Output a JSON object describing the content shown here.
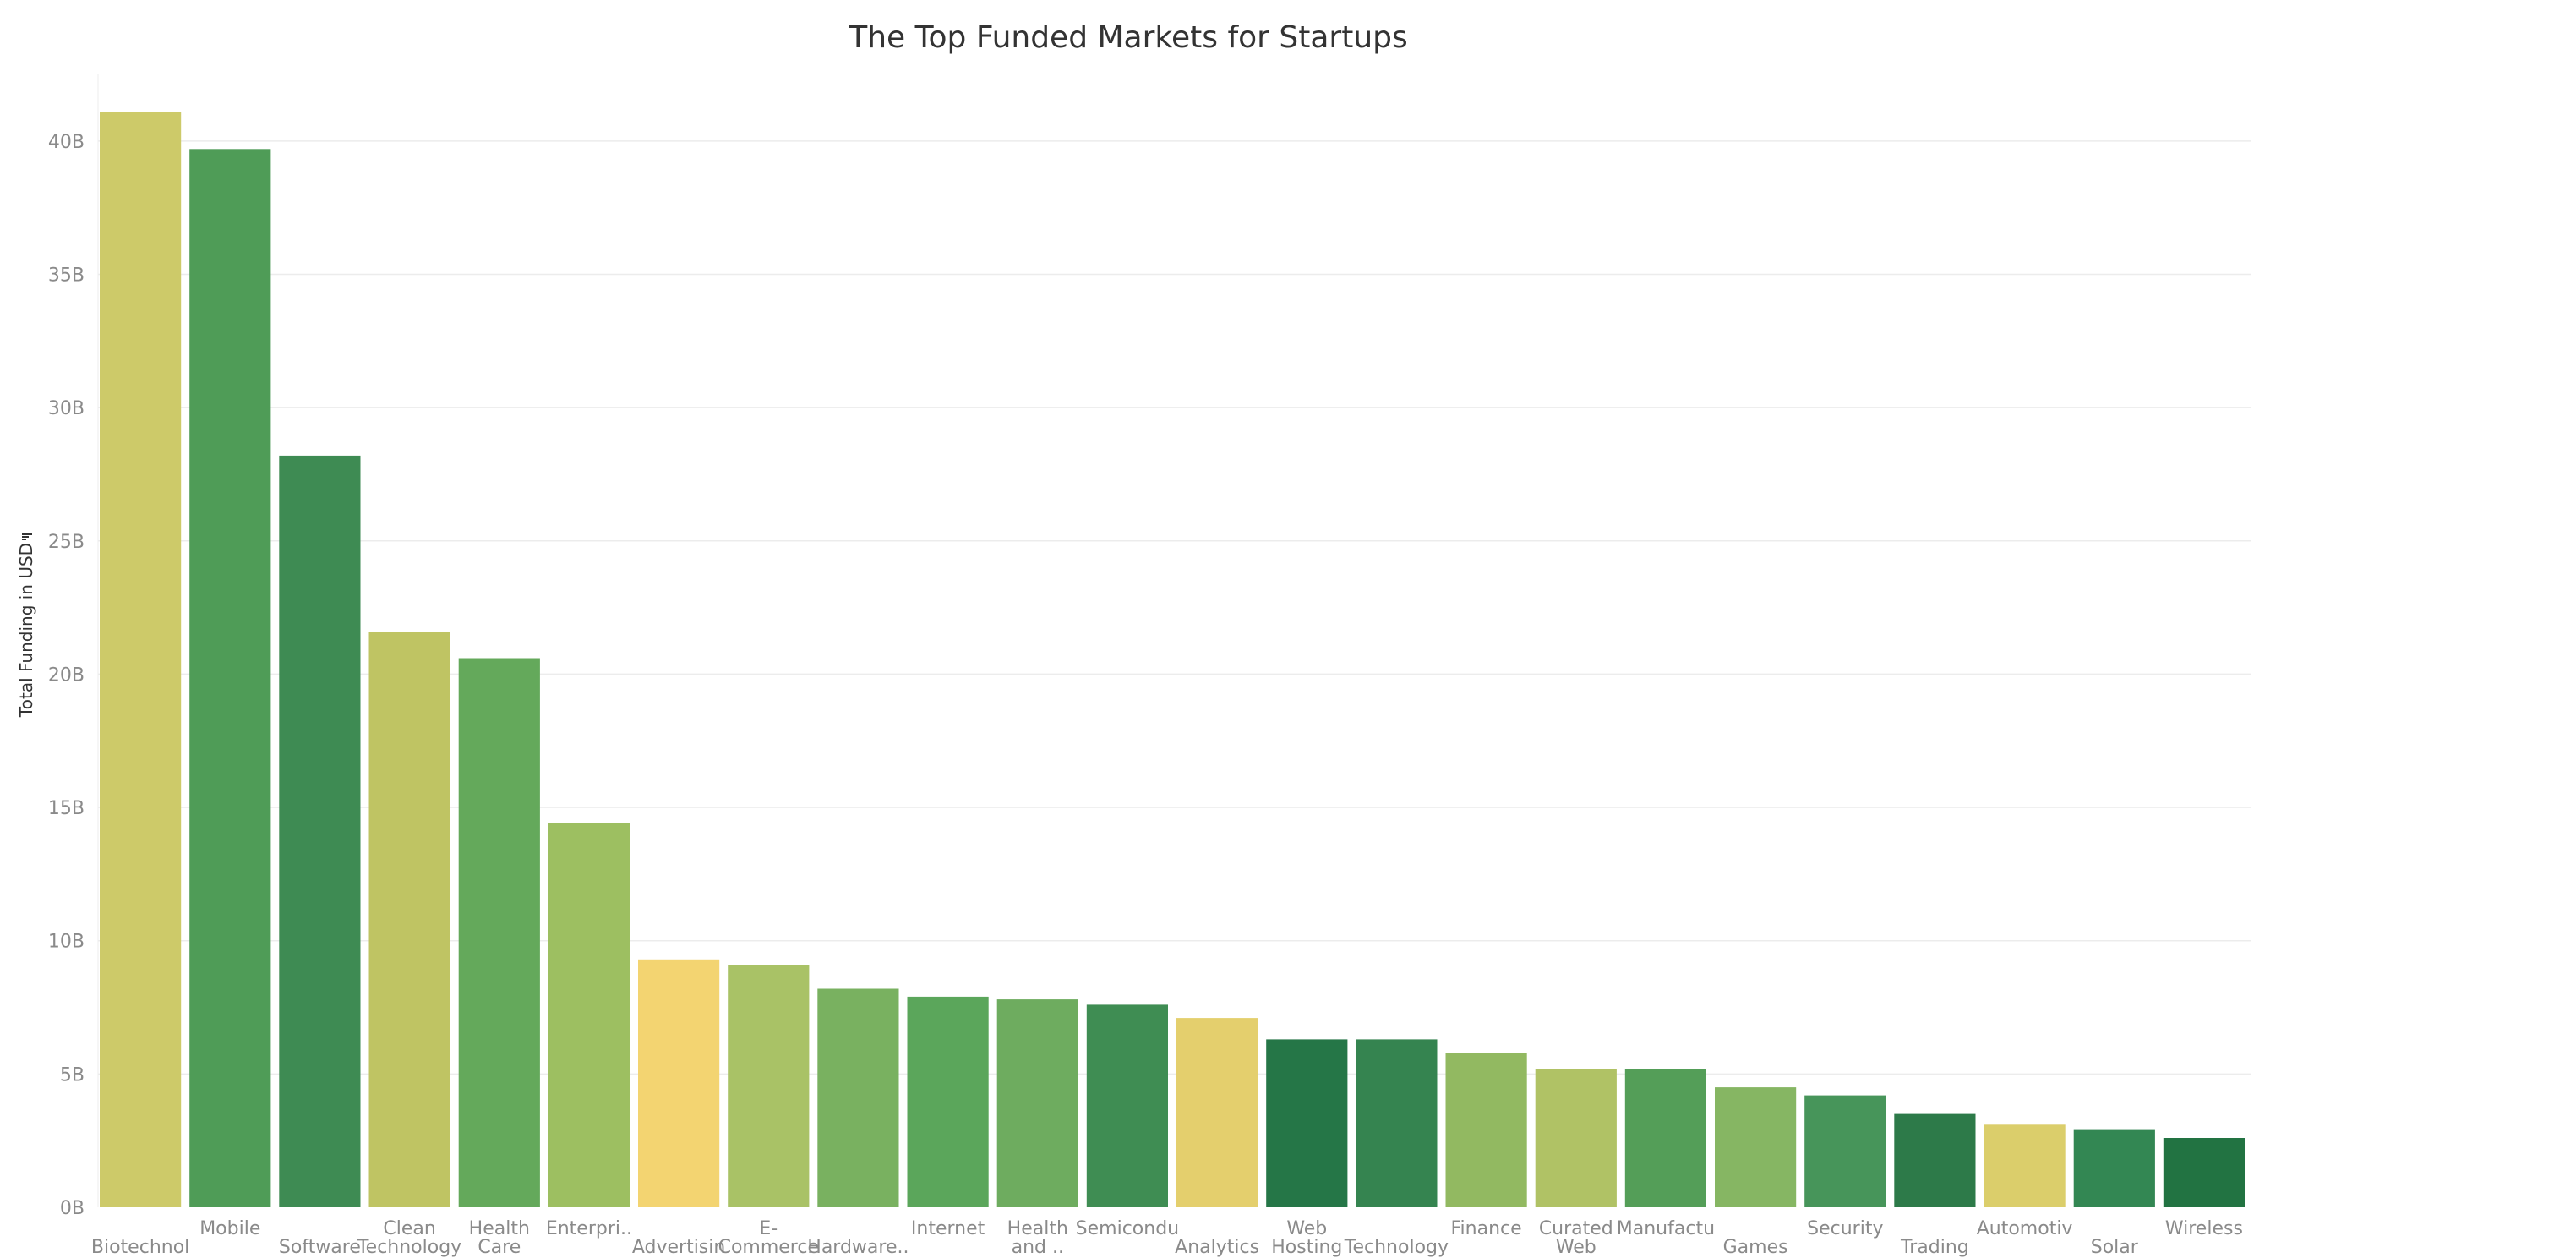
{
  "chart_data": {
    "type": "bar",
    "title": "The Top Funded Markets for Startups",
    "xlabel": "",
    "ylabel": "Total Funding in USD",
    "ylim": [
      0,
      42.5
    ],
    "y_unit_suffix": "B",
    "yticks": [
      0,
      5,
      10,
      15,
      20,
      25,
      30,
      35,
      40
    ],
    "ytick_labels": [
      "0B",
      "5B",
      "10B",
      "15B",
      "20B",
      "25B",
      "30B",
      "35B",
      "40B"
    ],
    "grid": true,
    "legend": "none",
    "categories": [
      [
        "Biotechnol"
      ],
      [
        "Mobile"
      ],
      [
        "Software"
      ],
      [
        "Clean",
        "Technology"
      ],
      [
        "Health",
        "Care"
      ],
      [
        "Enterpri.."
      ],
      [
        "Advertisin"
      ],
      [
        "E-",
        "Commerce"
      ],
      [
        "Hardware.."
      ],
      [
        "Internet"
      ],
      [
        "Health",
        "and .."
      ],
      [
        "Semicondu"
      ],
      [
        "Analytics"
      ],
      [
        "Web",
        "Hosting"
      ],
      [
        "Technology"
      ],
      [
        "Finance"
      ],
      [
        "Curated",
        "Web"
      ],
      [
        "Manufactu"
      ],
      [
        "Games"
      ],
      [
        "Security"
      ],
      [
        "Trading"
      ],
      [
        "Automotiv"
      ],
      [
        "Solar"
      ],
      [
        "Wireless"
      ]
    ],
    "values": [
      41.1,
      39.7,
      28.2,
      21.6,
      20.6,
      14.4,
      9.3,
      9.1,
      8.2,
      7.9,
      7.8,
      7.6,
      7.1,
      6.3,
      6.3,
      5.8,
      5.2,
      5.2,
      4.5,
      4.2,
      3.5,
      3.1,
      2.9,
      2.6
    ],
    "colors": [
      "#cdca69",
      "#4f9c57",
      "#3e8b53",
      "#bfc463",
      "#64a95b",
      "#9dbf61",
      "#f3d471",
      "#a9c266",
      "#79b160",
      "#5ba65b",
      "#6eac5f",
      "#3f8d53",
      "#e4cf6d",
      "#257647",
      "#358450",
      "#92b961",
      "#b0c265",
      "#549e58",
      "#86b663",
      "#47955a",
      "#2d7a49",
      "#dbce6b",
      "#338753",
      "#227342"
    ]
  }
}
